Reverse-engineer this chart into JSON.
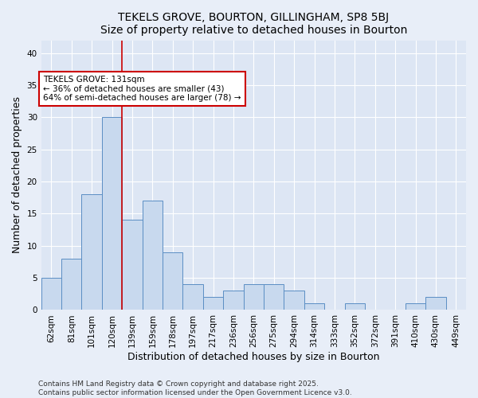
{
  "title": "TEKELS GROVE, BOURTON, GILLINGHAM, SP8 5BJ",
  "subtitle": "Size of property relative to detached houses in Bourton",
  "xlabel": "Distribution of detached houses by size in Bourton",
  "ylabel": "Number of detached properties",
  "categories": [
    "62sqm",
    "81sqm",
    "101sqm",
    "120sqm",
    "139sqm",
    "159sqm",
    "178sqm",
    "197sqm",
    "217sqm",
    "236sqm",
    "256sqm",
    "275sqm",
    "294sqm",
    "314sqm",
    "333sqm",
    "352sqm",
    "372sqm",
    "391sqm",
    "410sqm",
    "430sqm",
    "449sqm"
  ],
  "values": [
    5,
    8,
    18,
    30,
    14,
    17,
    9,
    4,
    2,
    3,
    4,
    4,
    3,
    1,
    0,
    1,
    0,
    0,
    1,
    2,
    0
  ],
  "bar_color": "#c8d9ee",
  "bar_edge_color": "#5b8ec4",
  "vline_x": 3.5,
  "vline_color": "#cc0000",
  "annotation_line1": "TEKELS GROVE: 131sqm",
  "annotation_line2": "← 36% of detached houses are smaller (43)",
  "annotation_line3": "64% of semi-detached houses are larger (78) →",
  "annotation_box_color": "#ffffff",
  "annotation_box_edge": "#cc0000",
  "ylim": [
    0,
    42
  ],
  "yticks": [
    0,
    5,
    10,
    15,
    20,
    25,
    30,
    35,
    40
  ],
  "background_color": "#e8eef8",
  "plot_bg_color": "#dde6f4",
  "grid_color": "#ffffff",
  "footer_line1": "Contains HM Land Registry data © Crown copyright and database right 2025.",
  "footer_line2": "Contains public sector information licensed under the Open Government Licence v3.0.",
  "title_fontsize": 10,
  "subtitle_fontsize": 9,
  "axis_label_fontsize": 9,
  "tick_fontsize": 7.5,
  "annotation_fontsize": 7.5,
  "footer_fontsize": 6.5
}
